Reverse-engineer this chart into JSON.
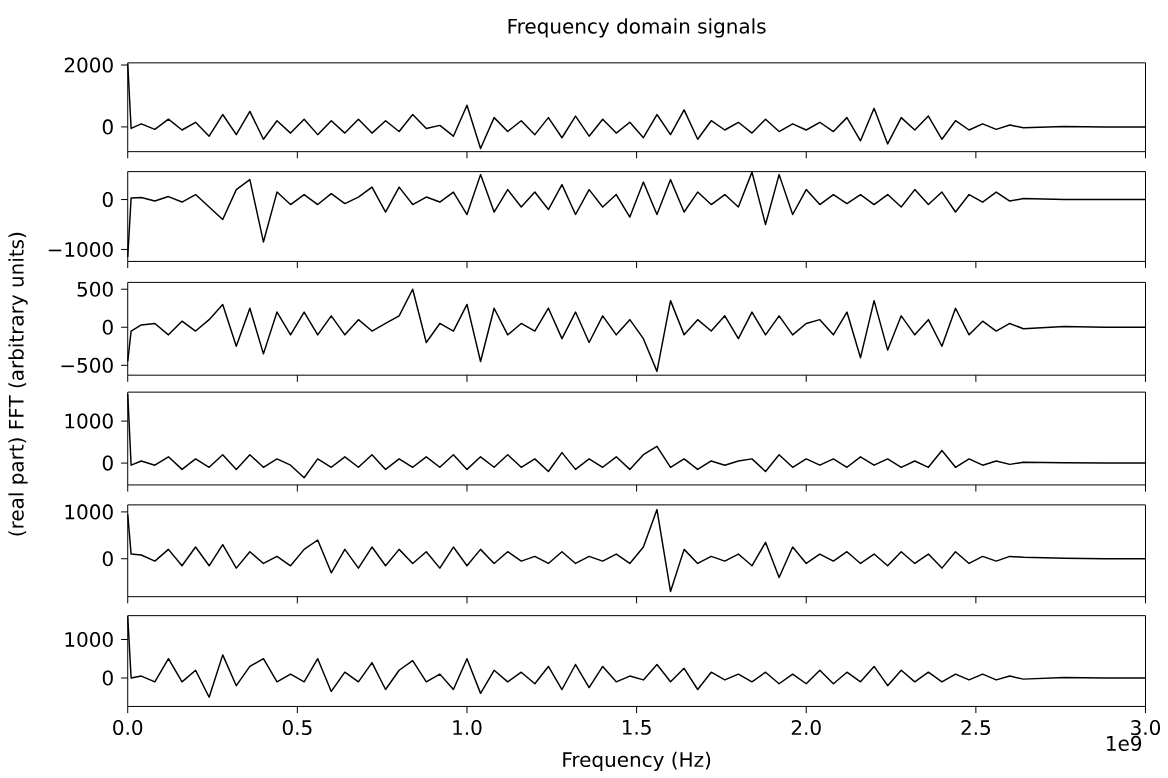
{
  "chart_data": [
    {
      "type": "line",
      "title": "Frequency domain signals",
      "color": "#000000",
      "xlim": [
        0,
        3
      ],
      "xticks": [
        {
          "value": 0,
          "label": null
        },
        {
          "value": 0.5,
          "label": null
        },
        {
          "value": 1,
          "label": null
        },
        {
          "value": 1.5,
          "label": null
        },
        {
          "value": 2,
          "label": null
        },
        {
          "value": 2.5,
          "label": null
        },
        {
          "value": 3,
          "label": null
        }
      ],
      "ylim": [
        -800,
        2070
      ],
      "yticks": [
        0,
        2000
      ],
      "tick_labels": "y",
      "x": [
        0,
        0.01,
        0.04,
        0.08,
        0.12,
        0.16,
        0.2,
        0.24,
        0.28,
        0.32,
        0.36,
        0.4,
        0.44,
        0.48,
        0.52,
        0.56,
        0.6,
        0.64,
        0.68,
        0.72,
        0.76,
        0.8,
        0.84,
        0.88,
        0.92,
        0.96,
        1.0,
        1.04,
        1.08,
        1.12,
        1.16,
        1.2,
        1.24,
        1.28,
        1.32,
        1.36,
        1.4,
        1.44,
        1.48,
        1.52,
        1.56,
        1.6,
        1.64,
        1.68,
        1.72,
        1.76,
        1.8,
        1.84,
        1.88,
        1.92,
        1.96,
        2.0,
        2.04,
        2.08,
        2.12,
        2.16,
        2.2,
        2.24,
        2.28,
        2.32,
        2.36,
        2.4,
        2.44,
        2.48,
        2.52,
        2.56,
        2.6,
        2.64,
        2.76,
        2.88,
        3.0
      ],
      "values": [
        2050,
        -50,
        100,
        -80,
        250,
        -100,
        150,
        -300,
        400,
        -250,
        500,
        -400,
        200,
        -200,
        250,
        -250,
        200,
        -200,
        250,
        -200,
        200,
        -150,
        400,
        -50,
        50,
        -300,
        700,
        -700,
        300,
        -150,
        200,
        -250,
        300,
        -350,
        350,
        -300,
        250,
        -200,
        150,
        -350,
        400,
        -250,
        550,
        -400,
        200,
        -100,
        150,
        -200,
        250,
        -150,
        100,
        -100,
        150,
        -150,
        300,
        -450,
        600,
        -550,
        300,
        -100,
        350,
        -400,
        200,
        -100,
        100,
        -80,
        60,
        -30,
        10,
        0,
        0
      ]
    },
    {
      "type": "line",
      "color": "#000000",
      "xlim": [
        0,
        3
      ],
      "xticks": [
        {
          "value": 0,
          "label": null
        },
        {
          "value": 0.5,
          "label": null
        },
        {
          "value": 1,
          "label": null
        },
        {
          "value": 1.5,
          "label": null
        },
        {
          "value": 2,
          "label": null
        },
        {
          "value": 2.5,
          "label": null
        },
        {
          "value": 3,
          "label": null
        }
      ],
      "ylim": [
        -1240,
        560
      ],
      "yticks": [
        {
          "value": -1000,
          "label": "−1000"
        },
        0
      ],
      "tick_labels": "y",
      "x": [
        0,
        0.01,
        0.04,
        0.08,
        0.12,
        0.16,
        0.2,
        0.24,
        0.28,
        0.32,
        0.36,
        0.4,
        0.44,
        0.48,
        0.52,
        0.56,
        0.6,
        0.64,
        0.68,
        0.72,
        0.76,
        0.8,
        0.84,
        0.88,
        0.92,
        0.96,
        1.0,
        1.04,
        1.08,
        1.12,
        1.16,
        1.2,
        1.24,
        1.28,
        1.32,
        1.36,
        1.4,
        1.44,
        1.48,
        1.52,
        1.56,
        1.6,
        1.64,
        1.68,
        1.72,
        1.76,
        1.8,
        1.84,
        1.88,
        1.92,
        1.96,
        2.0,
        2.04,
        2.08,
        2.12,
        2.16,
        2.2,
        2.24,
        2.28,
        2.32,
        2.36,
        2.4,
        2.44,
        2.48,
        2.52,
        2.56,
        2.6,
        2.64,
        2.76,
        2.88,
        3.0
      ],
      "values": [
        -1150,
        30,
        40,
        -30,
        60,
        -50,
        100,
        -150,
        -400,
        200,
        400,
        -850,
        150,
        -100,
        100,
        -100,
        120,
        -80,
        50,
        250,
        -250,
        250,
        -100,
        50,
        -50,
        150,
        -300,
        500,
        -250,
        200,
        -150,
        150,
        -200,
        300,
        -300,
        200,
        -150,
        100,
        -350,
        350,
        -300,
        400,
        -250,
        150,
        -100,
        100,
        -150,
        550,
        -500,
        500,
        -300,
        200,
        -100,
        100,
        -80,
        100,
        -100,
        100,
        -150,
        200,
        -100,
        150,
        -250,
        100,
        -50,
        150,
        -30,
        20,
        0,
        0,
        0
      ]
    },
    {
      "type": "line",
      "ylabel": "(real part) FFT (arbitrary units)",
      "color": "#000000",
      "xlim": [
        0,
        3
      ],
      "xticks": [
        {
          "value": 0,
          "label": null
        },
        {
          "value": 0.5,
          "label": null
        },
        {
          "value": 1,
          "label": null
        },
        {
          "value": 1.5,
          "label": null
        },
        {
          "value": 2,
          "label": null
        },
        {
          "value": 2.5,
          "label": null
        },
        {
          "value": 3,
          "label": null
        }
      ],
      "ylim": [
        -630,
        590
      ],
      "yticks": [
        {
          "value": -500,
          "label": "−500"
        },
        0,
        500
      ],
      "tick_labels": "y",
      "x": [
        0,
        0.01,
        0.04,
        0.08,
        0.12,
        0.16,
        0.2,
        0.24,
        0.28,
        0.32,
        0.36,
        0.4,
        0.44,
        0.48,
        0.52,
        0.56,
        0.6,
        0.64,
        0.68,
        0.72,
        0.76,
        0.8,
        0.84,
        0.88,
        0.92,
        0.96,
        1.0,
        1.04,
        1.08,
        1.12,
        1.16,
        1.2,
        1.24,
        1.28,
        1.32,
        1.36,
        1.4,
        1.44,
        1.48,
        1.52,
        1.56,
        1.6,
        1.64,
        1.68,
        1.72,
        1.76,
        1.8,
        1.84,
        1.88,
        1.92,
        1.96,
        2.0,
        2.04,
        2.08,
        2.12,
        2.16,
        2.2,
        2.24,
        2.28,
        2.32,
        2.36,
        2.4,
        2.44,
        2.48,
        2.52,
        2.56,
        2.6,
        2.64,
        2.76,
        2.88,
        3.0
      ],
      "values": [
        -450,
        -50,
        30,
        50,
        -100,
        80,
        -50,
        100,
        300,
        -250,
        250,
        -350,
        200,
        -100,
        200,
        -100,
        150,
        -100,
        100,
        -50,
        50,
        150,
        500,
        -200,
        50,
        -50,
        300,
        -450,
        250,
        -100,
        50,
        -50,
        250,
        -150,
        200,
        -200,
        150,
        -100,
        100,
        -150,
        -580,
        350,
        -100,
        100,
        -50,
        150,
        -150,
        200,
        -100,
        150,
        -100,
        50,
        100,
        -100,
        200,
        -400,
        350,
        -300,
        150,
        -100,
        100,
        -250,
        250,
        -100,
        80,
        -50,
        50,
        -20,
        10,
        0,
        0
      ]
    },
    {
      "type": "line",
      "color": "#000000",
      "xlim": [
        0,
        3
      ],
      "xticks": [
        {
          "value": 0,
          "label": null
        },
        {
          "value": 0.5,
          "label": null
        },
        {
          "value": 1,
          "label": null
        },
        {
          "value": 1.5,
          "label": null
        },
        {
          "value": 2,
          "label": null
        },
        {
          "value": 2.5,
          "label": null
        },
        {
          "value": 3,
          "label": null
        }
      ],
      "ylim": [
        -520,
        1690
      ],
      "yticks": [
        0,
        1000
      ],
      "tick_labels": "y",
      "x": [
        0,
        0.01,
        0.04,
        0.08,
        0.12,
        0.16,
        0.2,
        0.24,
        0.28,
        0.32,
        0.36,
        0.4,
        0.44,
        0.48,
        0.52,
        0.56,
        0.6,
        0.64,
        0.68,
        0.72,
        0.76,
        0.8,
        0.84,
        0.88,
        0.92,
        0.96,
        1.0,
        1.04,
        1.08,
        1.12,
        1.16,
        1.2,
        1.24,
        1.28,
        1.32,
        1.36,
        1.4,
        1.44,
        1.48,
        1.52,
        1.56,
        1.6,
        1.64,
        1.68,
        1.72,
        1.76,
        1.8,
        1.84,
        1.88,
        1.92,
        1.96,
        2.0,
        2.04,
        2.08,
        2.12,
        2.16,
        2.2,
        2.24,
        2.28,
        2.32,
        2.36,
        2.4,
        2.44,
        2.48,
        2.52,
        2.56,
        2.6,
        2.64,
        2.76,
        2.88,
        3.0
      ],
      "values": [
        1650,
        -50,
        50,
        -50,
        150,
        -150,
        100,
        -100,
        200,
        -150,
        200,
        -100,
        100,
        -50,
        -350,
        100,
        -100,
        150,
        -100,
        200,
        -150,
        100,
        -100,
        150,
        -100,
        200,
        -150,
        150,
        -100,
        200,
        -100,
        100,
        -200,
        250,
        -150,
        100,
        -100,
        150,
        -150,
        200,
        400,
        -100,
        100,
        -150,
        50,
        -50,
        50,
        100,
        -200,
        200,
        -100,
        100,
        -50,
        100,
        -100,
        150,
        -50,
        100,
        -100,
        50,
        -100,
        300,
        -100,
        100,
        -50,
        50,
        -30,
        20,
        10,
        0,
        0
      ]
    },
    {
      "type": "line",
      "color": "#000000",
      "xlim": [
        0,
        3
      ],
      "xticks": [
        {
          "value": 0,
          "label": null
        },
        {
          "value": 0.5,
          "label": null
        },
        {
          "value": 1,
          "label": null
        },
        {
          "value": 1.5,
          "label": null
        },
        {
          "value": 2,
          "label": null
        },
        {
          "value": 2.5,
          "label": null
        },
        {
          "value": 3,
          "label": null
        }
      ],
      "ylim": [
        -810,
        1150
      ],
      "yticks": [
        0,
        1000
      ],
      "tick_labels": "y",
      "x": [
        0,
        0.01,
        0.04,
        0.08,
        0.12,
        0.16,
        0.2,
        0.24,
        0.28,
        0.32,
        0.36,
        0.4,
        0.44,
        0.48,
        0.52,
        0.56,
        0.6,
        0.64,
        0.68,
        0.72,
        0.76,
        0.8,
        0.84,
        0.88,
        0.92,
        0.96,
        1.0,
        1.04,
        1.08,
        1.12,
        1.16,
        1.2,
        1.24,
        1.28,
        1.32,
        1.36,
        1.4,
        1.44,
        1.48,
        1.52,
        1.56,
        1.6,
        1.64,
        1.68,
        1.72,
        1.76,
        1.8,
        1.84,
        1.88,
        1.92,
        1.96,
        2.0,
        2.04,
        2.08,
        2.12,
        2.16,
        2.2,
        2.24,
        2.28,
        2.32,
        2.36,
        2.4,
        2.44,
        2.48,
        2.52,
        2.56,
        2.6,
        2.64,
        2.76,
        2.88,
        3.0
      ],
      "values": [
        950,
        100,
        80,
        -50,
        200,
        -150,
        250,
        -150,
        300,
        -200,
        150,
        -100,
        50,
        -150,
        200,
        400,
        -300,
        200,
        -200,
        250,
        -150,
        200,
        -100,
        150,
        -200,
        250,
        -150,
        200,
        -100,
        150,
        -50,
        50,
        -100,
        150,
        -100,
        50,
        -50,
        100,
        -100,
        250,
        1050,
        -700,
        200,
        -100,
        50,
        -50,
        100,
        -150,
        350,
        -400,
        250,
        -100,
        100,
        -50,
        150,
        -100,
        100,
        -150,
        150,
        -100,
        100,
        -200,
        150,
        -100,
        50,
        -50,
        50,
        30,
        10,
        0,
        0
      ]
    },
    {
      "type": "line",
      "xlabel": "Frequency (Hz)",
      "annotations": [
        "1e9"
      ],
      "color": "#000000",
      "xlim": [
        0,
        3
      ],
      "xticks": [
        {
          "value": 0,
          "label": "0.0"
        },
        {
          "value": 0.5,
          "label": "0.5"
        },
        {
          "value": 1,
          "label": "1.0"
        },
        {
          "value": 1.5,
          "label": "1.5"
        },
        {
          "value": 2,
          "label": "2.0"
        },
        {
          "value": 2.5,
          "label": "2.5"
        },
        {
          "value": 3,
          "label": "3.0"
        }
      ],
      "ylim": [
        -740,
        1620
      ],
      "yticks": [
        0,
        1000
      ],
      "x": [
        0,
        0.01,
        0.04,
        0.08,
        0.12,
        0.16,
        0.2,
        0.24,
        0.28,
        0.32,
        0.36,
        0.4,
        0.44,
        0.48,
        0.52,
        0.56,
        0.6,
        0.64,
        0.68,
        0.72,
        0.76,
        0.8,
        0.84,
        0.88,
        0.92,
        0.96,
        1.0,
        1.04,
        1.08,
        1.12,
        1.16,
        1.2,
        1.24,
        1.28,
        1.32,
        1.36,
        1.4,
        1.44,
        1.48,
        1.52,
        1.56,
        1.6,
        1.64,
        1.68,
        1.72,
        1.76,
        1.8,
        1.84,
        1.88,
        1.92,
        1.96,
        2.0,
        2.04,
        2.08,
        2.12,
        2.16,
        2.2,
        2.24,
        2.28,
        2.32,
        2.36,
        2.4,
        2.44,
        2.48,
        2.52,
        2.56,
        2.6,
        2.64,
        2.76,
        2.88,
        3.0
      ],
      "values": [
        1600,
        0,
        50,
        -100,
        500,
        -100,
        200,
        -500,
        600,
        -200,
        300,
        500,
        -100,
        100,
        -100,
        500,
        -350,
        150,
        -100,
        400,
        -300,
        200,
        450,
        -100,
        100,
        -300,
        500,
        -400,
        200,
        -100,
        150,
        -150,
        300,
        -300,
        350,
        -250,
        300,
        -100,
        50,
        -50,
        350,
        -100,
        250,
        -300,
        150,
        -50,
        100,
        -100,
        150,
        -150,
        100,
        -150,
        200,
        -150,
        150,
        -100,
        300,
        -200,
        200,
        -100,
        150,
        -100,
        100,
        -50,
        100,
        -50,
        50,
        -30,
        10,
        0,
        0
      ]
    }
  ]
}
